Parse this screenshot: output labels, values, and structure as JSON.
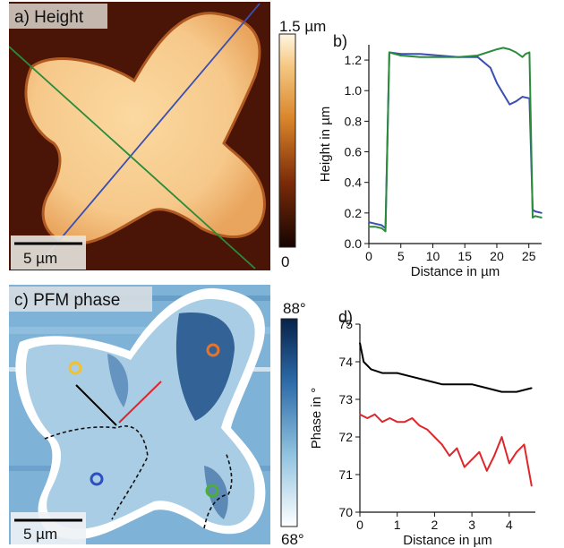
{
  "panels": {
    "a": {
      "label": "a) Height",
      "scalebar_label": "5 µm",
      "colorbar_max": "1.5 µm",
      "colorbar_min": "0"
    },
    "b": {
      "label": "b)"
    },
    "c": {
      "label": "c) PFM phase",
      "scalebar_label": "5 µm",
      "colorbar_max": "88°",
      "colorbar_min": "68°",
      "marker_colors": [
        "#f2c12e",
        "#e8742a",
        "#2e4fbf",
        "#4caf3a"
      ]
    },
    "d": {
      "label": "d)"
    }
  },
  "colors": {
    "blue_line": "#3a4fb0",
    "green_line": "#2a8c3a",
    "black_line": "#000000",
    "red_line": "#e0262a"
  },
  "chart_data": [
    {
      "type": "line",
      "xlabel": "Distance in µm",
      "ylabel": "Height in µm",
      "xlim": [
        0,
        27
      ],
      "ylim": [
        0,
        1.3
      ],
      "xticks": [
        "0",
        "5",
        "10",
        "15",
        "20",
        "25"
      ],
      "yticks": [
        "0.0",
        "0.2",
        "0.4",
        "0.6",
        "0.8",
        "1.0",
        "1.2"
      ],
      "series": [
        {
          "color": "#3a4fb0",
          "x": [
            0,
            1,
            2,
            2.6,
            3.2,
            5,
            8,
            11,
            14,
            17,
            19,
            20,
            21,
            22,
            23,
            24,
            25.1,
            25.6,
            26,
            27
          ],
          "values": [
            0.14,
            0.13,
            0.12,
            0.1,
            1.25,
            1.24,
            1.24,
            1.23,
            1.22,
            1.22,
            1.15,
            1.05,
            0.98,
            0.91,
            0.93,
            0.96,
            0.95,
            0.22,
            0.21,
            0.2
          ]
        },
        {
          "color": "#2a8c3a",
          "x": [
            0,
            1,
            2,
            2.6,
            3.2,
            5,
            8,
            11,
            14,
            17,
            20,
            21,
            22,
            23,
            24,
            24.5,
            25.1,
            25.6,
            26,
            27
          ],
          "values": [
            0.11,
            0.11,
            0.1,
            0.08,
            1.25,
            1.23,
            1.22,
            1.22,
            1.22,
            1.23,
            1.27,
            1.28,
            1.27,
            1.25,
            1.22,
            1.24,
            1.25,
            0.17,
            0.18,
            0.17
          ]
        }
      ]
    },
    {
      "type": "line",
      "xlabel": "Distance in µm",
      "ylabel": "Phase in °",
      "xlim": [
        0,
        4.7
      ],
      "ylim": [
        70,
        75
      ],
      "xticks": [
        "0",
        "1",
        "2",
        "3",
        "4"
      ],
      "yticks": [
        "70",
        "71",
        "72",
        "73",
        "74",
        "75"
      ],
      "series": [
        {
          "color": "#000000",
          "x": [
            0,
            0.1,
            0.3,
            0.6,
            1.0,
            1.4,
            1.8,
            2.2,
            2.6,
            3.0,
            3.4,
            3.8,
            4.2,
            4.6
          ],
          "values": [
            74.5,
            74.0,
            73.8,
            73.7,
            73.7,
            73.6,
            73.5,
            73.4,
            73.4,
            73.4,
            73.3,
            73.2,
            73.2,
            73.3
          ]
        },
        {
          "color": "#e0262a",
          "x": [
            0,
            0.2,
            0.4,
            0.6,
            0.8,
            1.0,
            1.2,
            1.4,
            1.6,
            1.8,
            2.0,
            2.2,
            2.4,
            2.6,
            2.8,
            3.0,
            3.2,
            3.4,
            3.6,
            3.8,
            4.0,
            4.2,
            4.4,
            4.6
          ],
          "values": [
            72.6,
            72.5,
            72.6,
            72.4,
            72.5,
            72.4,
            72.4,
            72.5,
            72.3,
            72.2,
            72.0,
            71.8,
            71.5,
            71.7,
            71.2,
            71.4,
            71.6,
            71.1,
            71.5,
            72.0,
            71.3,
            71.6,
            71.8,
            70.7
          ]
        }
      ]
    }
  ]
}
